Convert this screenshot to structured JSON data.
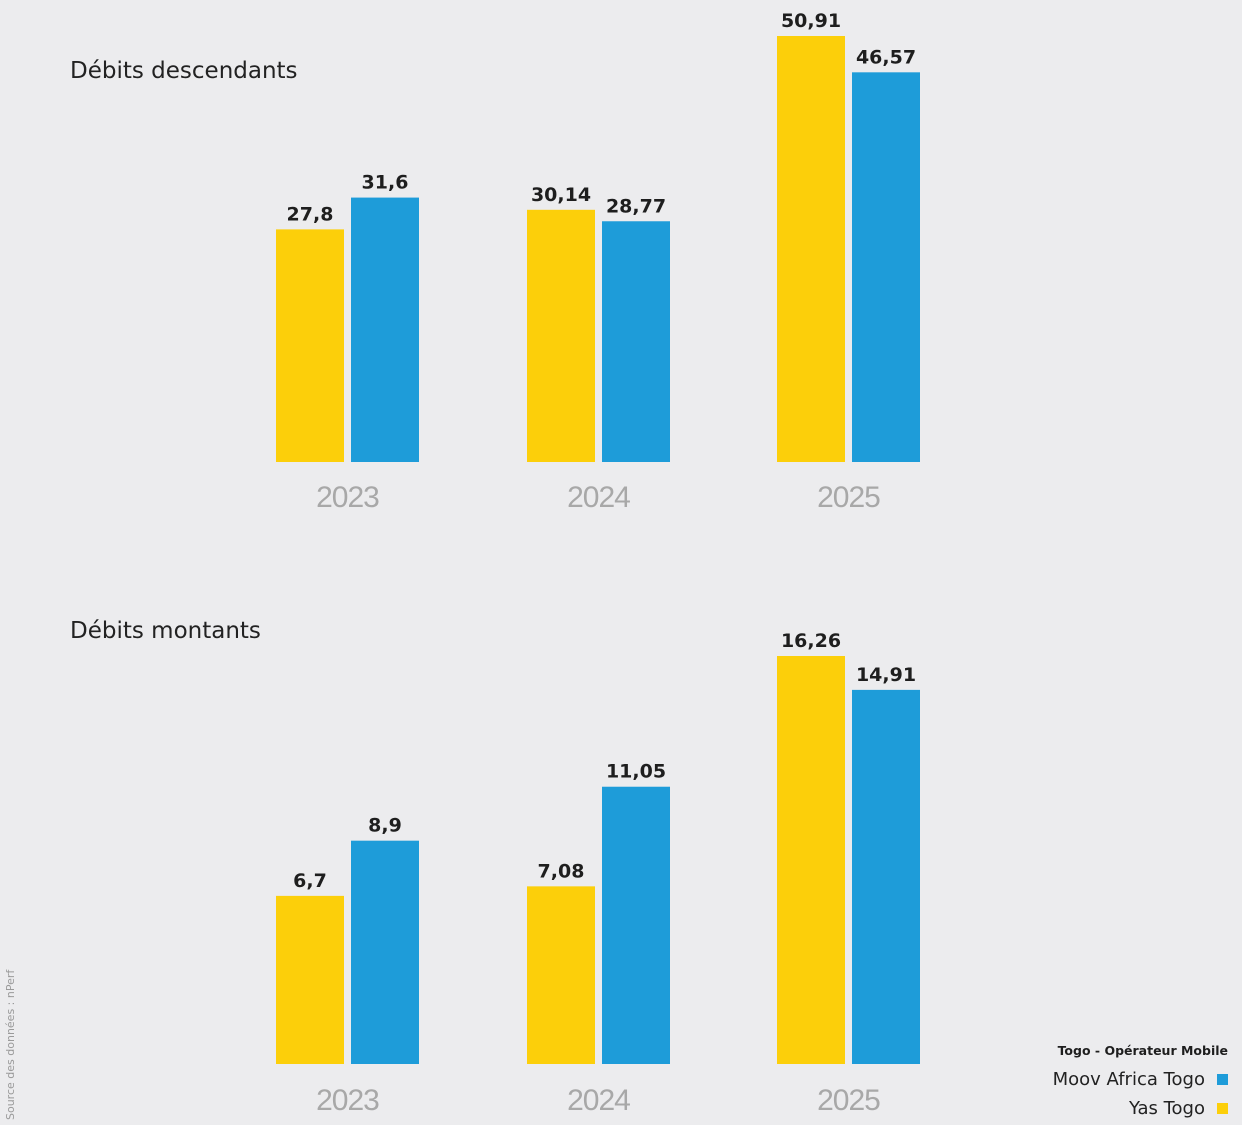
{
  "legend": {
    "title": "Togo - Opérateur Mobile",
    "items": [
      {
        "label": "Moov Africa Togo",
        "color": "#1e9cd9"
      },
      {
        "label": "Yas Togo",
        "color": "#fccf0a"
      }
    ]
  },
  "source_note": "Source des données : nPerf",
  "chart_data": [
    {
      "type": "bar",
      "title": "Débits descendants",
      "categories": [
        "2023",
        "2024",
        "2025"
      ],
      "series": [
        {
          "name": "Yas Togo",
          "color": "#fccf0a",
          "values": [
            27.8,
            30.14,
            50.91
          ],
          "labels": [
            "27,8",
            "30,14",
            "50,91"
          ]
        },
        {
          "name": "Moov Africa Togo",
          "color": "#1e9cd9",
          "values": [
            31.6,
            28.77,
            46.57
          ],
          "labels": [
            "31,6",
            "28,77",
            "46,57"
          ]
        }
      ],
      "ylim": [
        0,
        50.91
      ]
    },
    {
      "type": "bar",
      "title": "Débits montants",
      "categories": [
        "2023",
        "2024",
        "2025"
      ],
      "series": [
        {
          "name": "Yas Togo",
          "color": "#fccf0a",
          "values": [
            6.7,
            7.08,
            16.26
          ],
          "labels": [
            "6,7",
            "7,08",
            "16,26"
          ]
        },
        {
          "name": "Moov Africa Togo",
          "color": "#1e9cd9",
          "values": [
            8.9,
            11.05,
            14.91
          ],
          "labels": [
            "8,9",
            "11,05",
            "14,91"
          ]
        }
      ],
      "ylim": [
        0,
        16.26
      ]
    }
  ]
}
